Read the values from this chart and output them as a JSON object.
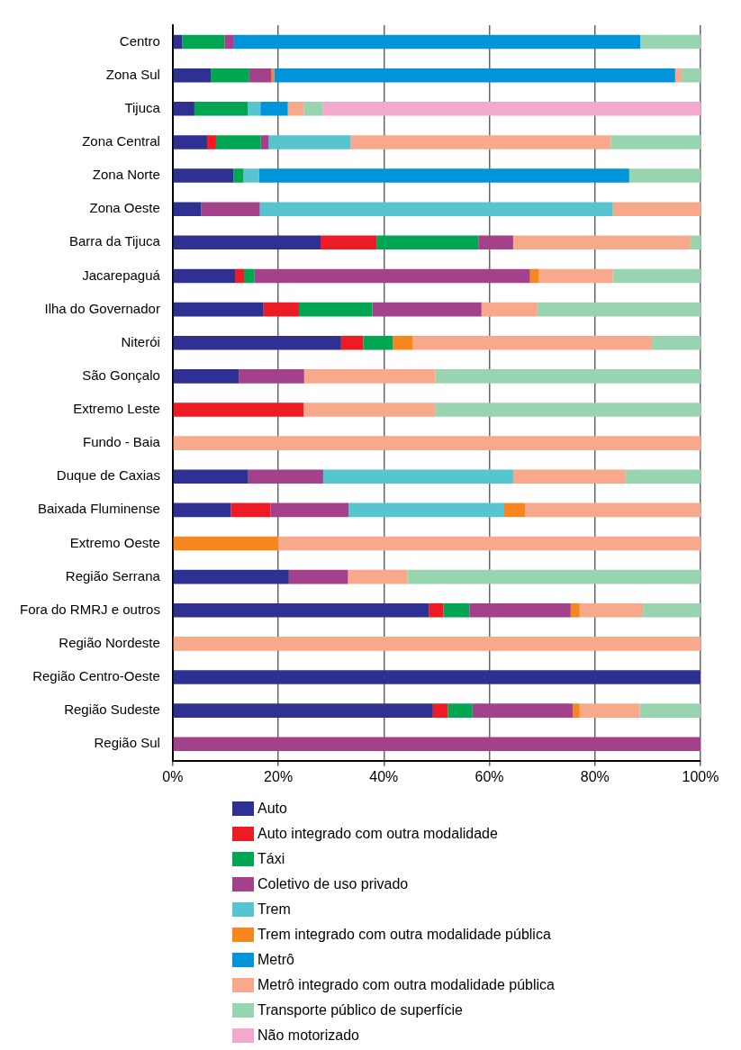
{
  "chart_data": {
    "type": "bar",
    "orientation": "horizontal",
    "stacked": true,
    "legend": "bottom",
    "grid": "x",
    "categories": [
      "Centro",
      "Zona Sul",
      "Tijuca",
      "Zona Central",
      "Zona Norte",
      "Zona Oeste",
      "Barra da Tijuca",
      "Jacarepaguá",
      "Ilha do Governador",
      "Niterói",
      "São Gonçalo",
      "Extremo Leste",
      "Fundo - Baia",
      "Duque de Caxias",
      "Baixada Fluminense",
      "Extremo Oeste",
      "Região Serrana",
      "Fora do RMRJ e outros",
      "Região Nordeste",
      "Região Centro-Oeste",
      "Região Sudeste",
      "Região Sul"
    ],
    "xlim": [
      0,
      100
    ],
    "xticks": [
      {
        "value": 0,
        "label": "0%"
      },
      {
        "value": 20,
        "label": "20%"
      },
      {
        "value": 40,
        "label": "40%"
      },
      {
        "value": 60,
        "label": "60%"
      },
      {
        "value": 80,
        "label": "80%"
      },
      {
        "value": 100,
        "label": "100%"
      }
    ],
    "series": [
      {
        "name": "Auto",
        "color": "#2e3192",
        "values": [
          1.8,
          7.2,
          4.1,
          6.5,
          11.5,
          5.4,
          28,
          11.8,
          17.2,
          31.9,
          12.5,
          null,
          null,
          14.3,
          11,
          null,
          22,
          48.5,
          null,
          100,
          49.3,
          null
        ]
      },
      {
        "name": "Auto integrado com outra modalidade",
        "color": "#ed1c24",
        "values": [
          null,
          null,
          null,
          1.7,
          null,
          null,
          10.6,
          1.7,
          6.7,
          4.2,
          null,
          24.8,
          null,
          null,
          7.5,
          null,
          null,
          2.8,
          null,
          null,
          2.8,
          null
        ]
      },
      {
        "name": "Táxi",
        "color": "#00a651",
        "values": [
          8,
          7.3,
          10.1,
          8.5,
          1.9,
          null,
          19.3,
          2,
          13.9,
          5.6,
          null,
          null,
          null,
          null,
          null,
          null,
          null,
          4.9,
          null,
          null,
          4.7,
          null
        ]
      },
      {
        "name": "Coletivo de uso privado",
        "color": "#a3418a",
        "values": [
          1.8,
          4.2,
          null,
          1.5,
          null,
          11.1,
          6.6,
          52.2,
          20.7,
          null,
          12.4,
          null,
          null,
          14.2,
          14.8,
          null,
          11.2,
          19.2,
          null,
          null,
          19,
          100
        ]
      },
      {
        "name": "Trem",
        "color": "#56c5d0",
        "values": [
          null,
          null,
          2.4,
          15.5,
          2.9,
          66.9,
          null,
          null,
          null,
          null,
          null,
          null,
          null,
          36,
          29.5,
          null,
          null,
          null,
          null,
          null,
          null,
          null
        ]
      },
      {
        "name": "Trem integrado com outra modalidade pública",
        "color": "#f7861f",
        "values": [
          null,
          0.5,
          null,
          null,
          null,
          null,
          null,
          1.7,
          null,
          3.8,
          null,
          null,
          null,
          null,
          4,
          20,
          null,
          1.7,
          null,
          null,
          1.3,
          null
        ]
      },
      {
        "name": "Metrô",
        "color": "#0095da",
        "values": [
          77,
          76,
          5.2,
          null,
          70.2,
          null,
          null,
          null,
          null,
          null,
          null,
          null,
          null,
          null,
          null,
          null,
          null,
          null,
          null,
          null,
          null,
          null
        ]
      },
      {
        "name": "Metrô integrado com outra modalidade pública",
        "color": "#f9a98b",
        "values": [
          null,
          1.2,
          3,
          49.3,
          null,
          16.6,
          33.6,
          14,
          10.6,
          45.3,
          24.9,
          24.9,
          100,
          21.3,
          33.2,
          80,
          11.3,
          12,
          100,
          null,
          11.4,
          null
        ]
      },
      {
        "name": "Transporte público de superfície",
        "color": "#99d4b0",
        "values": [
          11.4,
          3.6,
          3.6,
          17,
          13.5,
          null,
          1.9,
          16.6,
          30.9,
          9.2,
          50.2,
          50.3,
          null,
          14.2,
          null,
          null,
          55.5,
          10.9,
          null,
          null,
          11.5,
          null
        ]
      },
      {
        "name": "Não motorizado",
        "color": "#f2a9cd",
        "values": [
          null,
          null,
          71.6,
          null,
          null,
          null,
          null,
          null,
          null,
          null,
          null,
          null,
          null,
          null,
          null,
          null,
          null,
          null,
          null,
          null,
          null,
          null
        ]
      }
    ]
  }
}
